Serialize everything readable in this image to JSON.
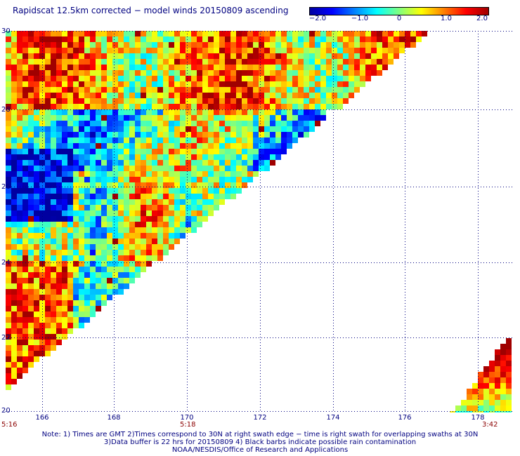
{
  "header": {
    "title": "Rapidscat 12.5km corrected − model winds 20150809 ascending"
  },
  "colorbar": {
    "ticks": [
      "−2.0",
      "−1.0",
      "0",
      "1.0",
      "2.0"
    ],
    "min": -2.0,
    "max": 2.0,
    "colors": [
      "#0000a0",
      "#0000ff",
      "#0080ff",
      "#00ffff",
      "#80ff80",
      "#ffff00",
      "#ff8000",
      "#ff0000",
      "#a00000"
    ]
  },
  "map": {
    "lat_range": [
      20,
      30
    ],
    "lon_range": [
      165,
      178.8
    ],
    "lat_ticks": [
      "30",
      "28",
      "26",
      "24",
      "22",
      "20"
    ],
    "lon_ticks": [
      "166",
      "168",
      "170",
      "172",
      "174",
      "176",
      "178"
    ],
    "grid_color": "#000080"
  },
  "times": {
    "left": "5:16",
    "middle": "5:18",
    "right": "3:42"
  },
  "notes": [
    "Note: 1) Times are GMT 2)Times correspond to 30N at right swath edge − time is right swath for overlapping swaths at 30N",
    "3)Data buffer is 22 hrs for 20150809 4) Black barbs indicate possible rain contamination",
    "NOAA/NESDIS/Office of Research and Applications"
  ]
}
